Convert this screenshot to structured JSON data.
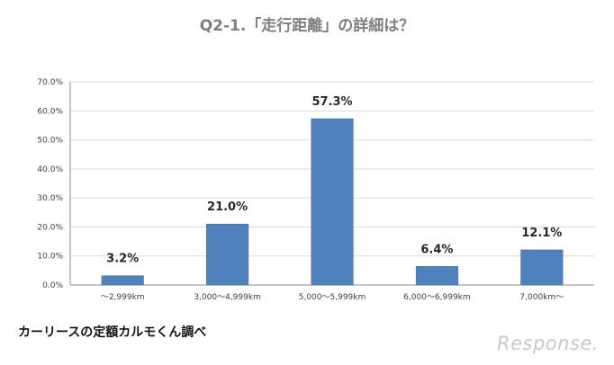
{
  "source_text": "カーリースの定額カルモくん調べ",
  "logo_text": "Response.",
  "chart_data": {
    "type": "bar",
    "title": "Q2-1.「走行距離」の詳細は？",
    "categories": [
      "〜2,999km",
      "3,000〜4,999km",
      "5,000〜5,999km",
      "6,000〜6,999km",
      "7,000km〜"
    ],
    "values": [
      3.2,
      21.0,
      57.3,
      6.4,
      12.1
    ],
    "value_labels": [
      "3.2%",
      "21.0%",
      "57.3%",
      "6.4%",
      "12.1%"
    ],
    "yticks": [
      0,
      10,
      20,
      30,
      40,
      50,
      60,
      70
    ],
    "ytick_labels": [
      "0.0%",
      "10.0%",
      "20.0%",
      "30.0%",
      "40.0%",
      "50.0%",
      "60.0%",
      "70.0%"
    ],
    "ylim": [
      0,
      70
    ],
    "xlabel": "",
    "ylabel": "",
    "grid": true,
    "legend": "none",
    "bar_color": "#4f81bd"
  }
}
